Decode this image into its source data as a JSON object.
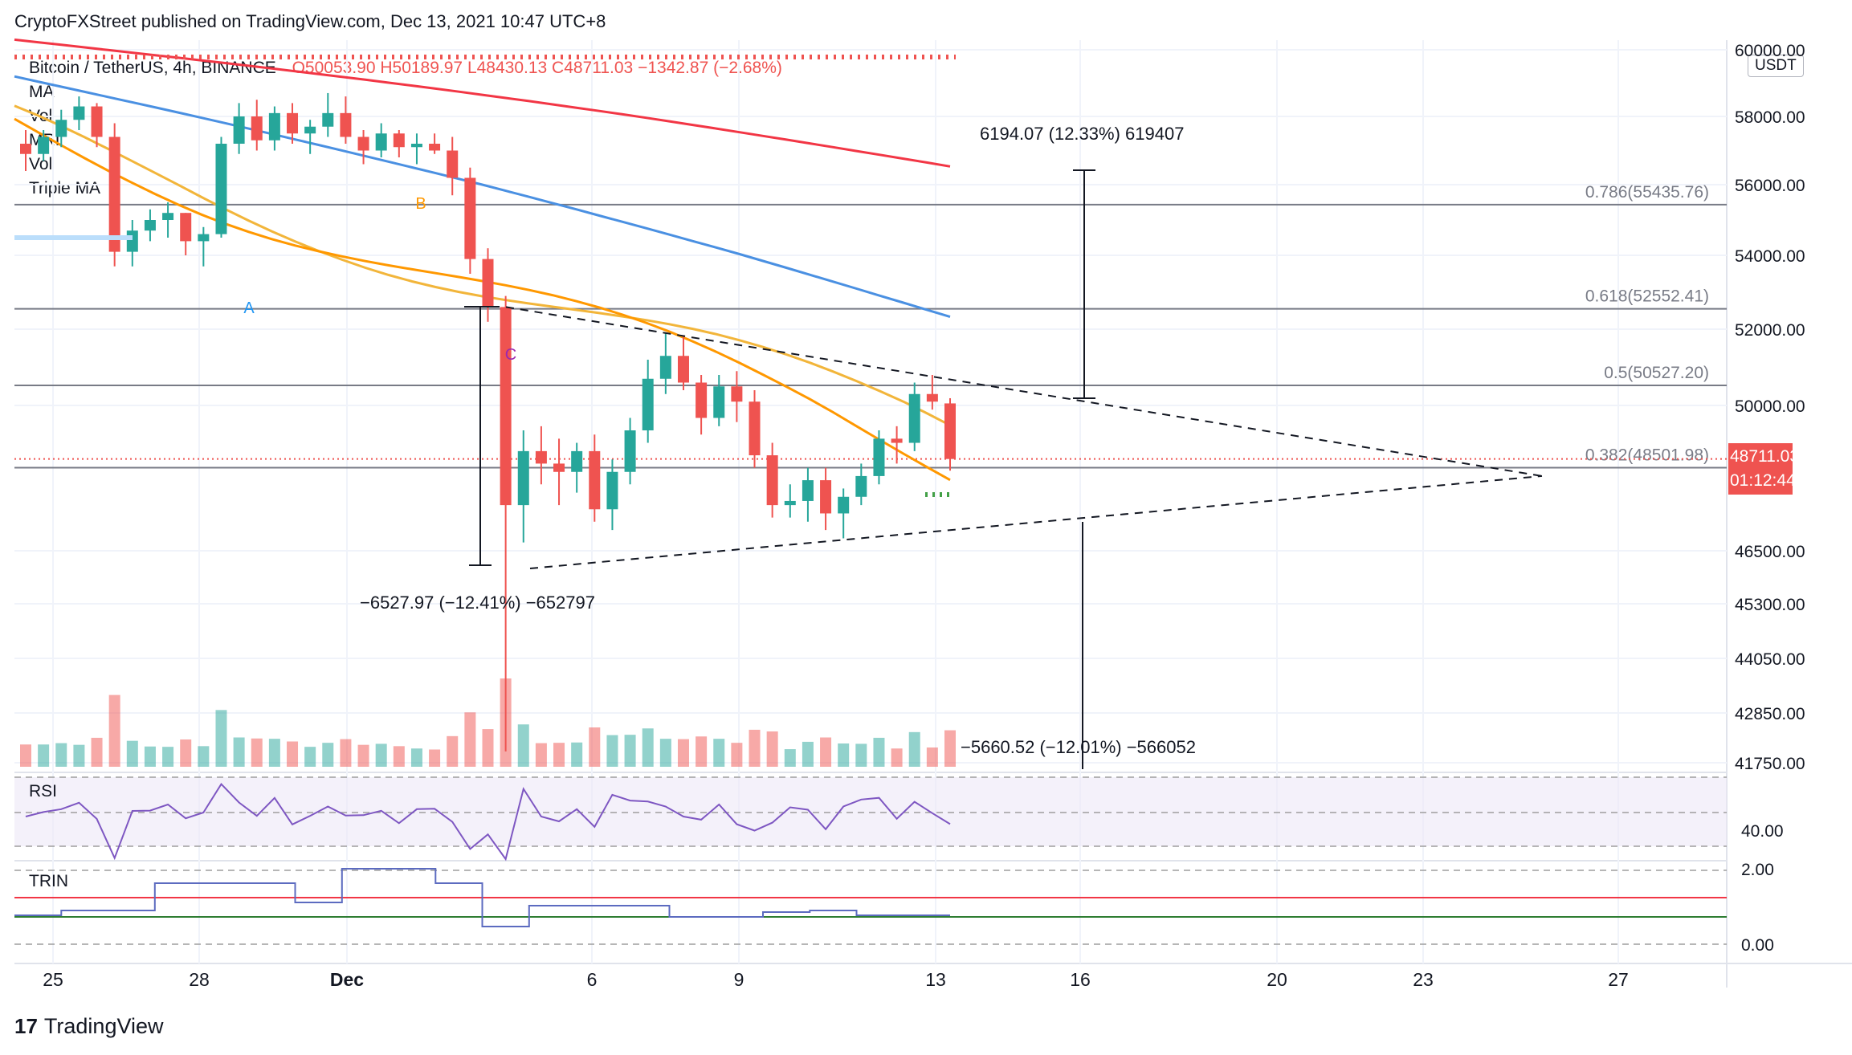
{
  "header": {
    "publisher": "CryptoFXStreet published on TradingView.com, Dec 13, 2021 10:47 UTC+8"
  },
  "legend": {
    "symbol": "Bitcoin / TetherUS, 4h, BINANCE",
    "ohlc": "O50053.90  H50189.97  L48430.13  C48711.03  −1342.87 (−2.68%)",
    "indicators": [
      "MA",
      "Vol",
      "MRI",
      "Vol",
      "Triple MA"
    ]
  },
  "price_axis": {
    "unit": "USDT",
    "labels": [
      "60000.00",
      "58000.00",
      "56000.00",
      "54000.00",
      "52000.00",
      "50000.00",
      "46500.00",
      "45300.00",
      "44050.00",
      "42850.00",
      "41750.00"
    ],
    "last_price": "48711.03",
    "countdown": "01:12:44"
  },
  "time_axis": {
    "labels": [
      "25",
      "28",
      "Dec",
      "6",
      "9",
      "13",
      "16",
      "20",
      "23",
      "27"
    ]
  },
  "fibonacci": [
    {
      "label": "0.786(55435.76)",
      "price": 55435.76
    },
    {
      "label": "0.618(52552.41)",
      "price": 52552.41
    },
    {
      "label": "0.5(50527.20)",
      "price": 50527.2
    },
    {
      "label": "0.382(48501.98)",
      "price": 48501.98
    }
  ],
  "measurements": [
    {
      "label": "6194.07 (12.33%) 619407"
    },
    {
      "label": "−6527.97 (−12.41%) −652797"
    },
    {
      "label": "−5660.52 (−12.01%) −566052"
    }
  ],
  "pattern_labels": [
    "A",
    "B",
    "C"
  ],
  "rsi": {
    "title": "RSI",
    "axis_label": "40.00"
  },
  "trin": {
    "title": "TRIN",
    "axis_labels": [
      "2.00",
      "0.00"
    ]
  },
  "footer": {
    "brand": "TradingView",
    "logo": "17"
  },
  "colors": {
    "up": "#26a69a",
    "down": "#ef5350",
    "ma_red": "#f23645",
    "ma_blue": "#4a90e2",
    "ma_orange": "#ff9800",
    "ma_yellow": "#f2b53a",
    "rsi": "#7e57c2",
    "trin": "#5c6bc0"
  },
  "chart_data": {
    "type": "candlestick",
    "timeframe": "4h",
    "symbol": "BTCUSDT",
    "last": {
      "open": 50053.9,
      "high": 50189.97,
      "low": 48430.13,
      "close": 48711.03,
      "change": -1342.87,
      "change_pct": -2.68
    },
    "y_range": [
      41750,
      60000
    ],
    "candles": [
      [
        57200,
        57600,
        56400,
        56900
      ],
      [
        56900,
        57600,
        56700,
        57400
      ],
      [
        57400,
        58200,
        57100,
        57900
      ],
      [
        57900,
        58600,
        57600,
        58300
      ],
      [
        58300,
        58400,
        57100,
        57400
      ],
      [
        57400,
        57800,
        53700,
        54100
      ],
      [
        54100,
        55000,
        53700,
        54700
      ],
      [
        54700,
        55300,
        54400,
        55000
      ],
      [
        55000,
        55500,
        54500,
        55200
      ],
      [
        55200,
        55200,
        54000,
        54400
      ],
      [
        54400,
        54800,
        53700,
        54600
      ],
      [
        54600,
        57400,
        54500,
        57200
      ],
      [
        57200,
        58400,
        56900,
        58000
      ],
      [
        58000,
        58500,
        57000,
        57300
      ],
      [
        57300,
        58300,
        57000,
        58100
      ],
      [
        58100,
        58400,
        57200,
        57500
      ],
      [
        57500,
        57900,
        56900,
        57700
      ],
      [
        57700,
        58700,
        57400,
        58100
      ],
      [
        58100,
        58600,
        57200,
        57400
      ],
      [
        57400,
        57600,
        56600,
        57000
      ],
      [
        57000,
        57800,
        56800,
        57500
      ],
      [
        57500,
        57600,
        56800,
        57100
      ],
      [
        57100,
        57500,
        56600,
        57200
      ],
      [
        57200,
        57500,
        56900,
        57000
      ],
      [
        57000,
        57400,
        55700,
        56200
      ],
      [
        56200,
        56500,
        53500,
        53900
      ],
      [
        53900,
        54200,
        52200,
        52600
      ],
      [
        52600,
        52900,
        42000,
        47600
      ],
      [
        47600,
        49400,
        46700,
        48900
      ],
      [
        48900,
        49500,
        48100,
        48600
      ],
      [
        48600,
        49200,
        47600,
        48400
      ],
      [
        48400,
        49100,
        47900,
        48900
      ],
      [
        48900,
        49300,
        47200,
        47500
      ],
      [
        47500,
        48700,
        47000,
        48400
      ],
      [
        48400,
        49700,
        48100,
        49400
      ],
      [
        49400,
        51200,
        49100,
        50700
      ],
      [
        50700,
        51900,
        50300,
        51300
      ],
      [
        51300,
        51800,
        50400,
        50600
      ],
      [
        50600,
        50800,
        49300,
        49700
      ],
      [
        49700,
        50800,
        49500,
        50500
      ],
      [
        50500,
        50900,
        49600,
        50100
      ],
      [
        50100,
        50400,
        48500,
        48800
      ],
      [
        48800,
        49100,
        47300,
        47600
      ],
      [
        47600,
        48100,
        47300,
        47700
      ],
      [
        47700,
        48500,
        47200,
        48200
      ],
      [
        48200,
        48500,
        47000,
        47400
      ],
      [
        47400,
        48000,
        46800,
        47800
      ],
      [
        47800,
        48600,
        47600,
        48300
      ],
      [
        48300,
        49400,
        48100,
        49200
      ],
      [
        49200,
        49500,
        48600,
        49100
      ],
      [
        49100,
        50600,
        48900,
        50300
      ],
      [
        50300,
        50800,
        49900,
        50100
      ],
      [
        50053.9,
        50189.97,
        48430.13,
        48711.03
      ]
    ],
    "moving_averages": [
      {
        "color": "red",
        "start": 60300,
        "end": 56500
      },
      {
        "color": "blue",
        "start": 59200,
        "end": 52300
      },
      {
        "color": "yellow",
        "start": 57500,
        "end": 49300
      },
      {
        "color": "orange",
        "start": 57800,
        "end": 48500
      }
    ],
    "triangle": {
      "upper": [
        [
          52600,
          0
        ],
        [
          48300,
          1
        ]
      ],
      "lower": [
        [
          46100,
          0
        ],
        [
          48300,
          1
        ]
      ]
    }
  }
}
